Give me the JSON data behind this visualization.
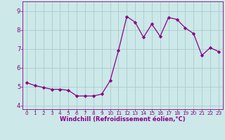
{
  "x": [
    0,
    1,
    2,
    3,
    4,
    5,
    6,
    7,
    8,
    9,
    10,
    11,
    12,
    13,
    14,
    15,
    16,
    17,
    18,
    19,
    20,
    21,
    22,
    23
  ],
  "y": [
    5.2,
    5.05,
    4.95,
    4.85,
    4.85,
    4.8,
    4.5,
    4.5,
    4.5,
    4.6,
    5.3,
    6.9,
    8.7,
    8.4,
    7.6,
    8.3,
    7.65,
    8.65,
    8.55,
    8.1,
    7.8,
    6.65,
    7.05,
    6.85
  ],
  "line_color": "#880088",
  "marker": "D",
  "marker_size": 2.2,
  "bg_color": "#cce8e8",
  "grid_color": "#aacccc",
  "xlabel": "Windchill (Refroidissement éolien,°C)",
  "xlim": [
    -0.5,
    23.5
  ],
  "ylim": [
    3.8,
    9.5
  ],
  "yticks": [
    4,
    5,
    6,
    7,
    8,
    9
  ],
  "xticks": [
    0,
    1,
    2,
    3,
    4,
    5,
    6,
    7,
    8,
    9,
    10,
    11,
    12,
    13,
    14,
    15,
    16,
    17,
    18,
    19,
    20,
    21,
    22,
    23
  ],
  "tick_color": "#880088",
  "label_color": "#880088",
  "xlabel_fontsize": 6.0,
  "xtick_fontsize": 5.2,
  "ytick_fontsize": 6.0
}
